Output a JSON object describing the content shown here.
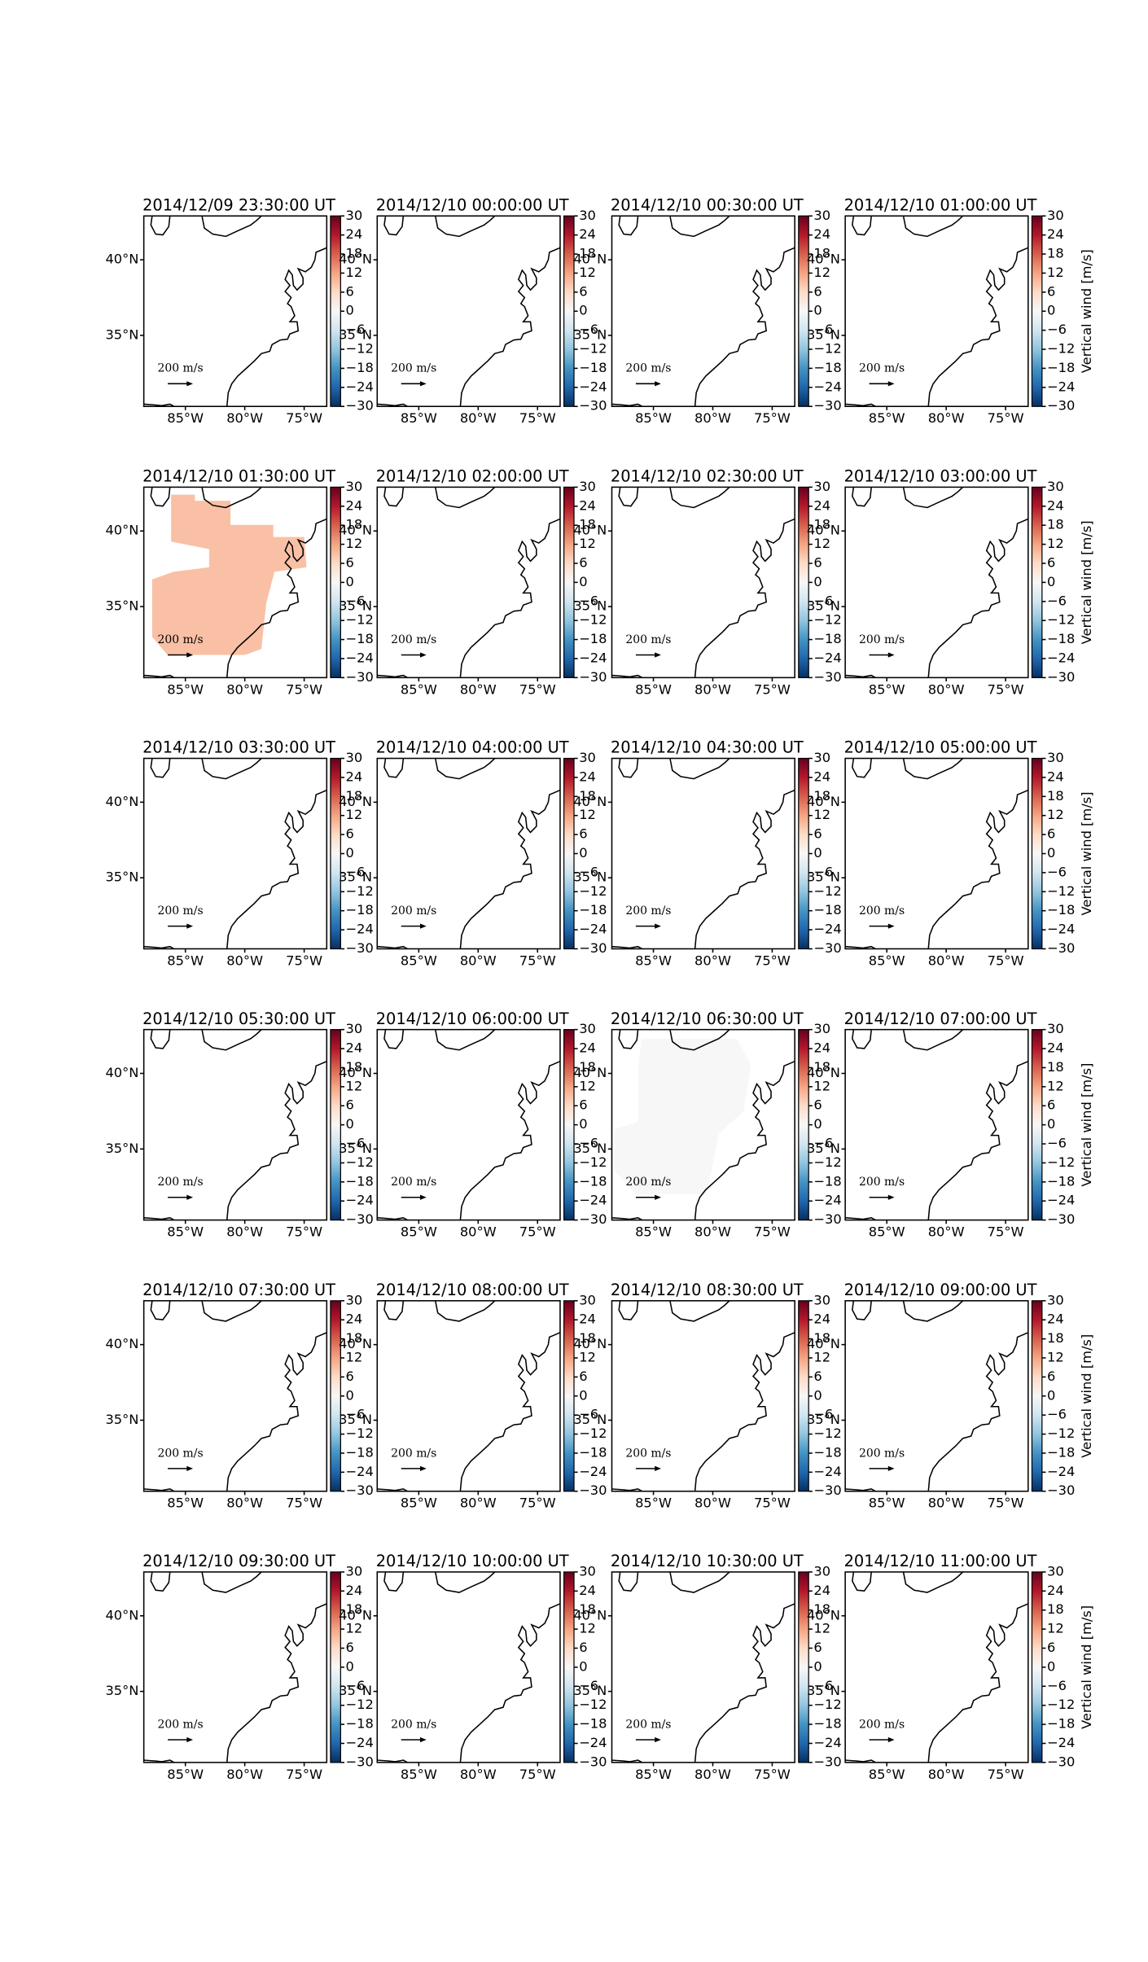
{
  "panels": [
    {
      "title": "2014/12/09 23:30:00 UT"
    },
    {
      "title": "2014/12/10 00:00:00 UT"
    },
    {
      "title": "2014/12/10 00:30:00 UT"
    },
    {
      "title": "2014/12/10 01:00:00 UT"
    },
    {
      "title": "2014/12/10 01:30:00 UT",
      "vertical_wind": 9
    },
    {
      "title": "2014/12/10 02:00:00 UT"
    },
    {
      "title": "2014/12/10 02:30:00 UT"
    },
    {
      "title": "2014/12/10 03:00:00 UT"
    },
    {
      "title": "2014/12/10 03:30:00 UT"
    },
    {
      "title": "2014/12/10 04:00:00 UT"
    },
    {
      "title": "2014/12/10 04:30:00 UT"
    },
    {
      "title": "2014/12/10 05:00:00 UT"
    },
    {
      "title": "2014/12/10 05:30:00 UT"
    },
    {
      "title": "2014/12/10 06:00:00 UT"
    },
    {
      "title": "2014/12/10 06:30:00 UT",
      "vertical_wind": 0
    },
    {
      "title": "2014/12/10 07:00:00 UT"
    },
    {
      "title": "2014/12/10 07:30:00 UT"
    },
    {
      "title": "2014/12/10 08:00:00 UT"
    },
    {
      "title": "2014/12/10 08:30:00 UT"
    },
    {
      "title": "2014/12/10 09:00:00 UT"
    },
    {
      "title": "2014/12/10 09:30:00 UT"
    },
    {
      "title": "2014/12/10 10:00:00 UT"
    },
    {
      "title": "2014/12/10 10:30:00 UT"
    },
    {
      "title": "2014/12/10 11:00:00 UT"
    }
  ],
  "colorbar": {
    "label": "Vertical wind [m/s]",
    "lim": [
      -30,
      30
    ],
    "ticks": [
      30,
      24,
      18,
      12,
      6,
      0,
      {
        "value": -6,
        "label": "−6"
      },
      {
        "value": -12,
        "label": "−12"
      },
      {
        "value": -18,
        "label": "−18"
      },
      {
        "value": -24,
        "label": "−24"
      },
      {
        "value": -30,
        "label": "−30"
      }
    ]
  },
  "map": {
    "xlim": [
      -88.5,
      -73.1
    ],
    "ylim": [
      30.3,
      42.9
    ],
    "xticks": [
      {
        "value": -85,
        "label": "85°W"
      },
      {
        "value": -80,
        "label": "80°W"
      },
      {
        "value": -75,
        "label": "75°W"
      }
    ],
    "yticks": [
      {
        "value": 35,
        "label": "35°N"
      },
      {
        "value": 40,
        "label": "40°N"
      }
    ]
  },
  "quiver_key": "200 m/s"
}
